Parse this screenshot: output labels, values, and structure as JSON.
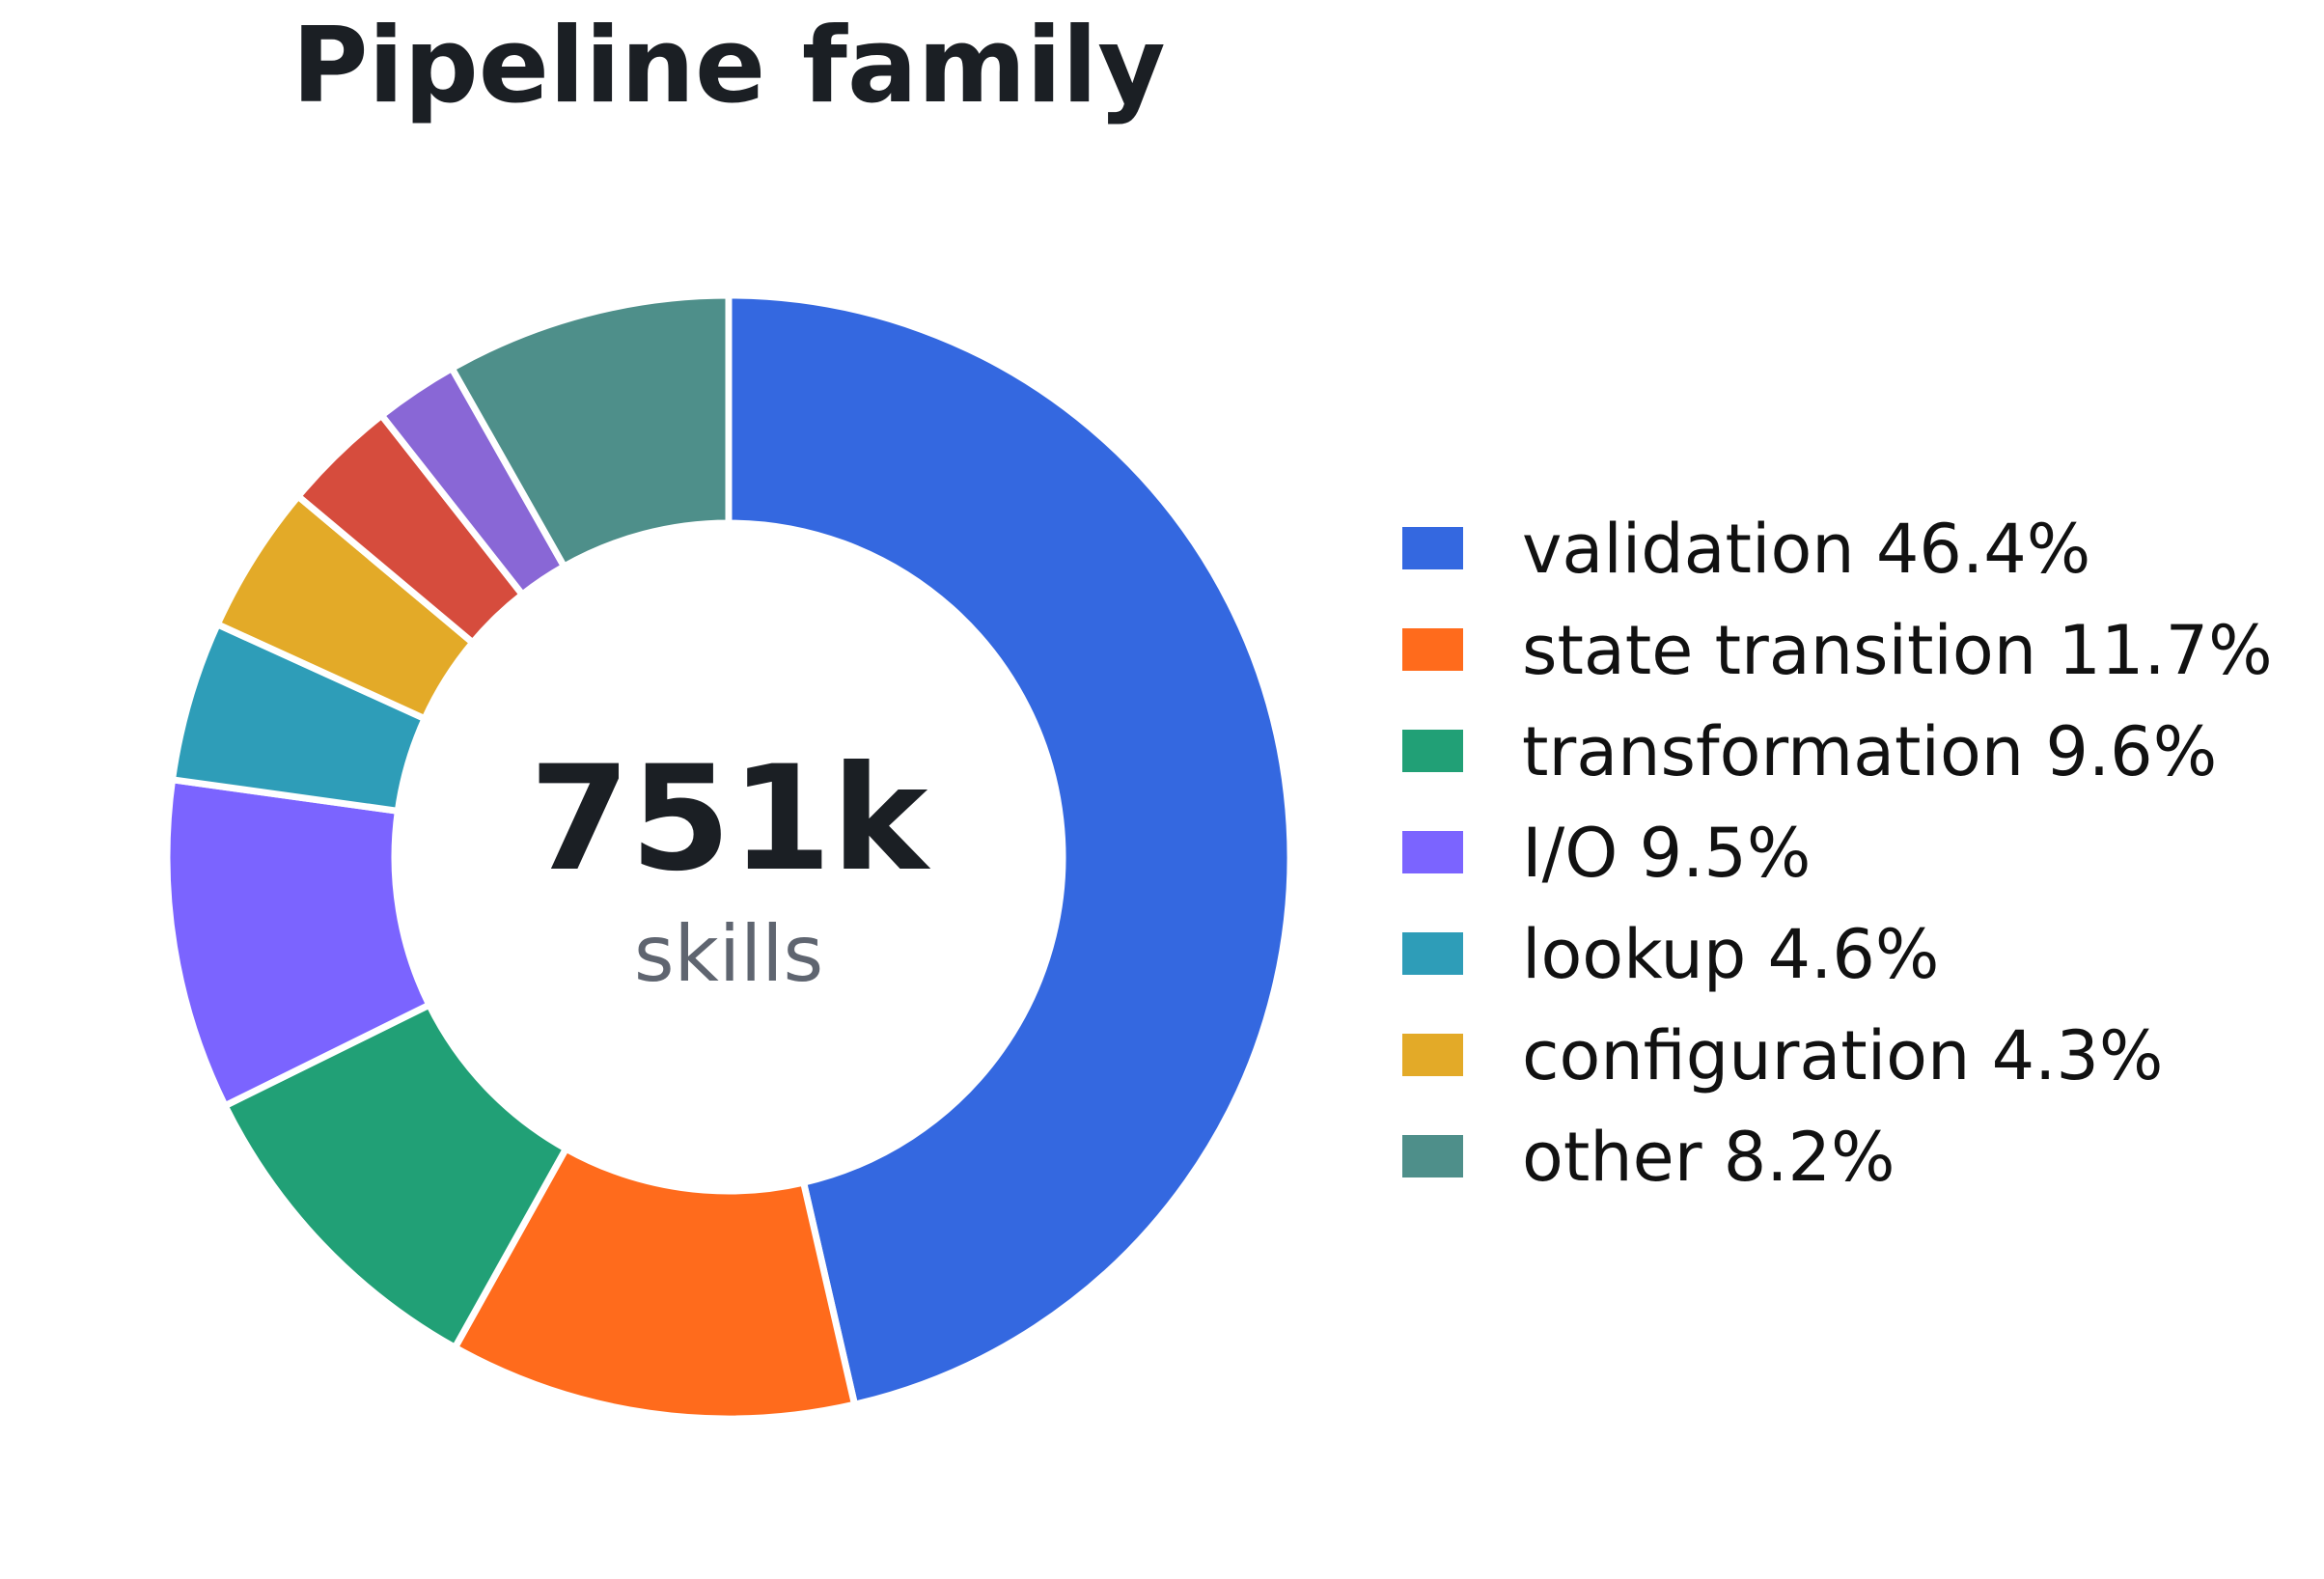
{
  "chart_data": {
    "type": "pie",
    "variant": "donut",
    "title": "Pipeline family",
    "center": {
      "value": "751k",
      "label": "skills"
    },
    "slices": [
      {
        "label": "validation",
        "percent": 46.4,
        "display": "validation 46.4%",
        "color": "#3468e0"
      },
      {
        "label": "state transition",
        "percent": 11.7,
        "display": "state transition 11.7%",
        "color": "#ff6b1c"
      },
      {
        "label": "transformation",
        "percent": 9.6,
        "display": "transformation 9.6%",
        "color": "#21a076"
      },
      {
        "label": "I/O",
        "percent": 9.5,
        "display": "I/O 9.5%",
        "color": "#7b64ff"
      },
      {
        "label": "lookup",
        "percent": 4.6,
        "display": "lookup 4.6%",
        "color": "#2e9db8"
      },
      {
        "label": "configuration",
        "percent": 4.3,
        "display": "configuration 4.3%",
        "color": "#e3aa28"
      },
      {
        "label": "",
        "percent": 3.3,
        "display": "",
        "color": "#d64c3d"
      },
      {
        "label": "",
        "percent": 2.4,
        "display": "",
        "color": "#8967d6"
      },
      {
        "label": "other",
        "percent": 8.2,
        "display": "other 8.2%",
        "color": "#4e8f8a"
      }
    ],
    "legend": {
      "placement": "right",
      "items": [
        {
          "text": "validation 46.4%",
          "color": "#3468e0"
        },
        {
          "text": "state transition 11.7%",
          "color": "#ff6b1c"
        },
        {
          "text": "transformation 9.6%",
          "color": "#21a076"
        },
        {
          "text": "I/O 9.5%",
          "color": "#7b64ff"
        },
        {
          "text": "lookup 4.6%",
          "color": "#2e9db8"
        },
        {
          "text": "configuration 4.3%",
          "color": "#e3aa28"
        },
        {
          "text": "other 8.2%",
          "color": "#4e8f8a"
        }
      ]
    },
    "start_angle_deg": 90,
    "direction": "clockwise",
    "grid": false
  }
}
